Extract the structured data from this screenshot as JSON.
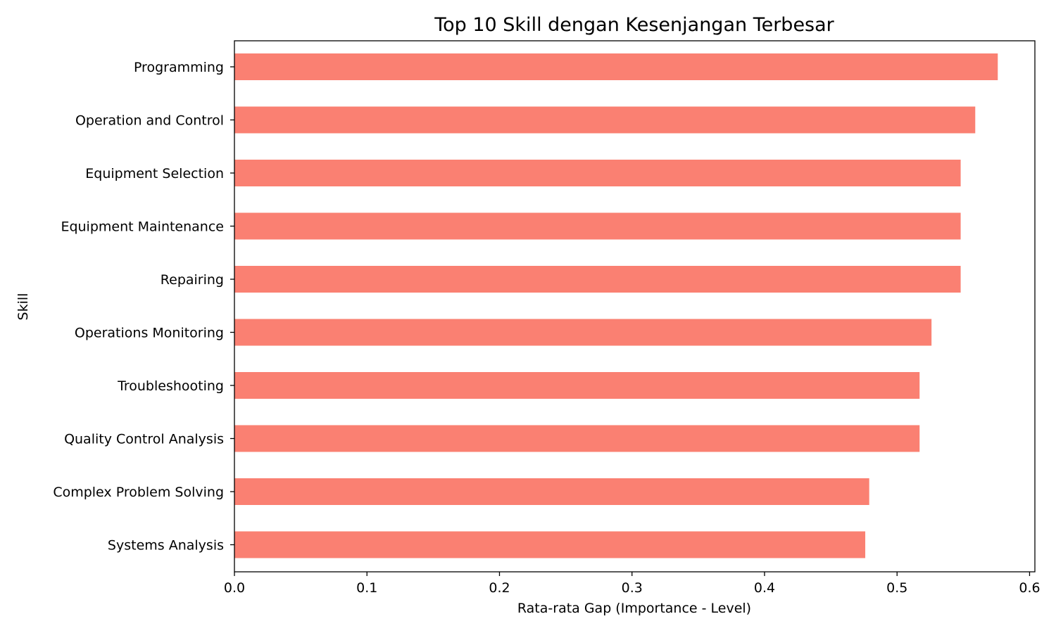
{
  "chart_data": {
    "type": "bar",
    "orientation": "horizontal",
    "title": "Top 10 Skill dengan Kesenjangan Terbesar",
    "xlabel": "Rata-rata Gap (Importance - Level)",
    "ylabel": "Skill",
    "xlim": [
      0,
      0.604
    ],
    "xticks": [
      "0.0",
      "0.1",
      "0.2",
      "0.3",
      "0.4",
      "0.5",
      "0.6"
    ],
    "categories": [
      "Programming",
      "Operation and Control",
      "Equipment Selection",
      "Equipment Maintenance",
      "Repairing",
      "Operations Monitoring",
      "Troubleshooting",
      "Quality Control Analysis",
      "Complex Problem Solving",
      "Systems Analysis"
    ],
    "values": [
      0.576,
      0.559,
      0.548,
      0.548,
      0.548,
      0.526,
      0.517,
      0.517,
      0.479,
      0.476
    ],
    "bar_color": "#fa8072",
    "grid": false,
    "legend": "none"
  }
}
